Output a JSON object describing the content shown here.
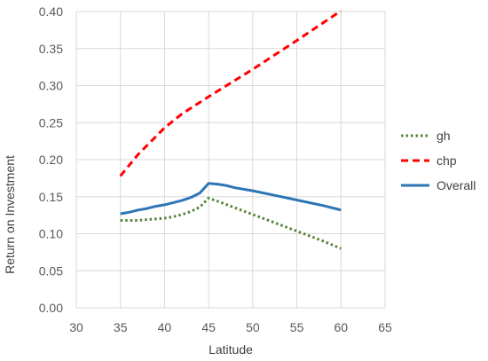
{
  "chart_data": {
    "type": "line",
    "xlabel": "Latitude",
    "ylabel": "Return on Investment",
    "xlim": [
      30,
      65
    ],
    "ylim": [
      0,
      0.4
    ],
    "x_ticks": [
      "30",
      "35",
      "40",
      "45",
      "50",
      "55",
      "60",
      "65"
    ],
    "y_ticks": [
      "0.00",
      "0.05",
      "0.10",
      "0.15",
      "0.20",
      "0.25",
      "0.30",
      "0.35",
      "0.40"
    ],
    "grid": "vertical and horizontal",
    "legend_position": "right",
    "series": [
      {
        "name": "gh",
        "color": "#548235",
        "style": "dotted",
        "x": [
          35,
          36,
          37,
          38,
          39,
          40,
          41,
          42,
          43,
          44,
          45,
          46,
          48,
          50,
          52,
          54,
          56,
          58,
          60
        ],
        "y": [
          0.118,
          0.118,
          0.118,
          0.119,
          0.12,
          0.121,
          0.123,
          0.126,
          0.13,
          0.136,
          0.148,
          0.144,
          0.135,
          0.126,
          0.117,
          0.108,
          0.099,
          0.09,
          0.08
        ]
      },
      {
        "name": "chp",
        "color": "#ff0000",
        "style": "dashed",
        "x": [
          35,
          37,
          40,
          42,
          45,
          50,
          55,
          60
        ],
        "y": [
          0.178,
          0.207,
          0.243,
          0.262,
          0.285,
          0.322,
          0.361,
          0.401
        ]
      },
      {
        "name": "Overall",
        "color": "#2e75b6",
        "style": "solid",
        "x": [
          35,
          36,
          37,
          38,
          39,
          40,
          41,
          42,
          43,
          44,
          45,
          46,
          47,
          48,
          50,
          52,
          54,
          56,
          58,
          60
        ],
        "y": [
          0.127,
          0.129,
          0.132,
          0.134,
          0.137,
          0.139,
          0.142,
          0.145,
          0.149,
          0.155,
          0.168,
          0.167,
          0.165,
          0.162,
          0.158,
          0.153,
          0.148,
          0.143,
          0.138,
          0.132
        ]
      }
    ]
  }
}
